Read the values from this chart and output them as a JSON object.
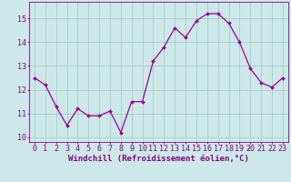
{
  "x": [
    0,
    1,
    2,
    3,
    4,
    5,
    6,
    7,
    8,
    9,
    10,
    11,
    12,
    13,
    14,
    15,
    16,
    17,
    18,
    19,
    20,
    21,
    22,
    23
  ],
  "y": [
    12.5,
    12.2,
    11.3,
    10.5,
    11.2,
    10.9,
    10.9,
    11.1,
    10.2,
    11.5,
    11.5,
    13.2,
    13.8,
    14.6,
    14.2,
    14.9,
    15.2,
    15.2,
    14.8,
    14.0,
    12.9,
    12.3,
    12.1,
    12.5
  ],
  "line_color": "#990099",
  "marker": "D",
  "marker_size": 2.0,
  "bg_color": "#cce8e8",
  "grid_color": "#aacccc",
  "xlabel": "Windchill (Refroidissement éolien,°C)",
  "ylim": [
    9.8,
    15.7
  ],
  "yticks": [
    10,
    11,
    12,
    13,
    14,
    15
  ],
  "xlim": [
    -0.5,
    23.5
  ],
  "xticks": [
    0,
    1,
    2,
    3,
    4,
    5,
    6,
    7,
    8,
    9,
    10,
    11,
    12,
    13,
    14,
    15,
    16,
    17,
    18,
    19,
    20,
    21,
    22,
    23
  ],
  "tick_fontsize": 6.0,
  "xlabel_fontsize": 6.5,
  "axis_label_color": "#880088",
  "tick_color": "#880088",
  "spine_color": "#880088",
  "line_width": 0.9
}
